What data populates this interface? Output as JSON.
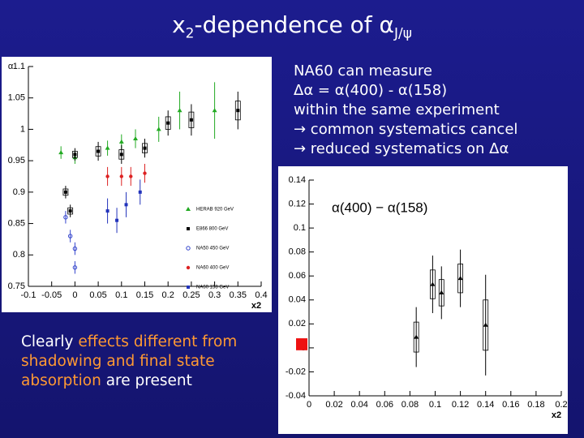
{
  "title": {
    "base": "x",
    "base_sub": "2",
    "rest": "-dependence of α",
    "rest_sub": "J/ψ"
  },
  "right_text": [
    "NA60 can measure",
    "Δα = α(400) - α(158)",
    "within the same experiment",
    "→ common systematics cancel",
    "→ reduced systematics on Δα"
  ],
  "left_text": [
    {
      "text": "Clearly ",
      "color": "#ffffff"
    },
    {
      "text": "effects different from shadowing and final state absorption",
      "color": "#ff9933"
    },
    {
      "text": " are present",
      "color": "#ffffff"
    }
  ],
  "chart_data": [
    {
      "type": "scatter",
      "y_label": "α",
      "x_label": "x2",
      "xlim": [
        -0.1,
        0.4
      ],
      "xticks": [
        -0.1,
        -0.05,
        0,
        0.05,
        0.1,
        0.15,
        0.2,
        0.25,
        0.3,
        0.35,
        0.4
      ],
      "ylim": [
        0.75,
        1.1
      ],
      "yticks": [
        0.75,
        0.8,
        0.85,
        0.9,
        0.95,
        1,
        1.05,
        1.1
      ],
      "legend": "lower right",
      "series": [
        {
          "name": "HERAB 920 GeV",
          "color": "#22aa22",
          "marker": "triangle",
          "x": [
            -0.03,
            0.0,
            0.07,
            0.1,
            0.13,
            0.18,
            0.225,
            0.3
          ],
          "values": [
            0.963,
            0.955,
            0.97,
            0.98,
            0.985,
            1.0,
            1.03,
            1.03
          ],
          "errors": [
            0.01,
            0.01,
            0.012,
            0.012,
            0.015,
            0.02,
            0.03,
            0.045
          ]
        },
        {
          "name": "E866 800 GeV",
          "color": "#000000",
          "marker": "square",
          "x": [
            -0.02,
            -0.01,
            0.0,
            0.05,
            0.1,
            0.15,
            0.2,
            0.25,
            0.35
          ],
          "values": [
            0.9,
            0.87,
            0.96,
            0.965,
            0.96,
            0.97,
            1.01,
            1.015,
            1.03
          ],
          "errors": [
            0.01,
            0.01,
            0.01,
            0.015,
            0.015,
            0.015,
            0.02,
            0.025,
            0.03
          ]
        },
        {
          "name": "NA50 450 GeV",
          "color": "#3344cc",
          "marker": "open",
          "x": [
            -0.02,
            -0.01,
            0.0,
            0.0
          ],
          "values": [
            0.86,
            0.83,
            0.81,
            0.78
          ],
          "errors": [
            0.01,
            0.01,
            0.01,
            0.01
          ]
        },
        {
          "name": "NA60 400 GeV",
          "color": "#dd2222",
          "marker": "circle",
          "x": [
            0.07,
            0.1,
            0.12,
            0.15
          ],
          "values": [
            0.925,
            0.925,
            0.925,
            0.93
          ],
          "errors": [
            0.015,
            0.015,
            0.015,
            0.015
          ]
        },
        {
          "name": "NA60 158 GeV",
          "color": "#2233bb",
          "marker": "square",
          "x": [
            0.07,
            0.09,
            0.11,
            0.14
          ],
          "values": [
            0.87,
            0.855,
            0.88,
            0.9
          ],
          "errors": [
            0.02,
            0.02,
            0.02,
            0.02
          ]
        }
      ]
    },
    {
      "type": "scatter",
      "x_label": "x2",
      "annotation": "α(400) − α(158)",
      "xlim": [
        0,
        0.2
      ],
      "xticks": [
        0,
        0.02,
        0.04,
        0.06,
        0.08,
        0.1,
        0.12,
        0.14,
        0.16,
        0.18,
        0.2
      ],
      "ylim": [
        -0.04,
        0.14
      ],
      "yticks": [
        -0.04,
        -0.02,
        0,
        0.02,
        0.04,
        0.06,
        0.08,
        0.1,
        0.12,
        0.14
      ],
      "band": {
        "color": "#ee1111",
        "low": -0.002,
        "high": 0.008
      },
      "series": [
        {
          "color": "#000000",
          "marker": "triangle",
          "x": [
            0.085,
            0.098,
            0.105,
            0.12,
            0.14
          ],
          "values": [
            0.009,
            0.053,
            0.046,
            0.058,
            0.019
          ],
          "errors": [
            0.025,
            0.024,
            0.022,
            0.024,
            0.042
          ]
        }
      ]
    }
  ]
}
